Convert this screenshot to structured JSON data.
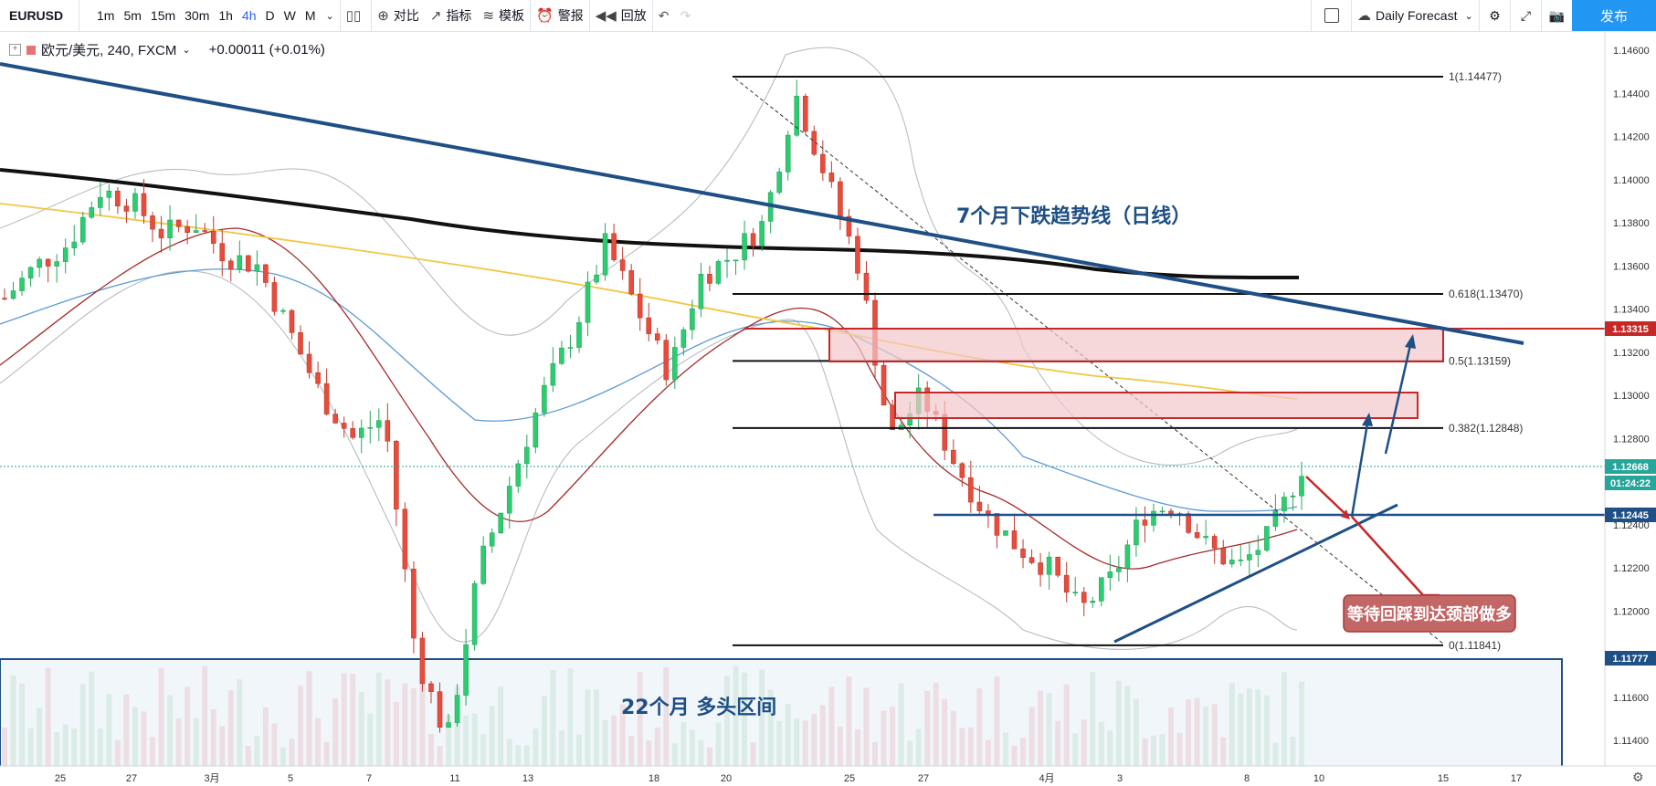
{
  "toolbar": {
    "symbol": "EURUSD",
    "intervals": [
      "1m",
      "5m",
      "15m",
      "30m",
      "1h",
      "4h",
      "D",
      "W",
      "M"
    ],
    "active_interval": "4h",
    "compare": "对比",
    "indicators": "指标",
    "templates": "模板",
    "alert": "警报",
    "replay": "回放",
    "layout_name": "Daily Forecast",
    "publish": "发布"
  },
  "legend": {
    "title": "欧元/美元, 240, FXCM",
    "change": "+0.00011 (+0.01%)"
  },
  "price_axis": {
    "ticks": [
      "1.14600",
      "1.14400",
      "1.14200",
      "1.14000",
      "1.13800",
      "1.13600",
      "1.13400",
      "1.13200",
      "1.13000",
      "1.12800",
      "1.12600",
      "1.12400",
      "1.12200",
      "1.12000",
      "1.11800",
      "1.11600",
      "1.11400"
    ],
    "labels": [
      {
        "text": "1.13315",
        "color": "#c62828"
      },
      {
        "text": "1.12668",
        "color": "#26a69a"
      },
      {
        "text": "01:24:22",
        "color": "#26a69a"
      },
      {
        "text": "1.12445",
        "color": "#1e4f85"
      },
      {
        "text": "1.11777",
        "color": "#1e4f85"
      }
    ]
  },
  "time_axis": [
    "25",
    "27",
    "3月",
    "5",
    "7",
    "11",
    "13",
    "18",
    "20",
    "25",
    "27",
    "4月",
    "3",
    "8",
    "10",
    "15",
    "17"
  ],
  "fib_levels": [
    {
      "label": "1(1.14477)",
      "price": 1.14477
    },
    {
      "label": "0.618(1.13470)",
      "price": 1.1347
    },
    {
      "label": "0.5(1.13159)",
      "price": 1.13159
    },
    {
      "label": "0.382(1.12848)",
      "price": 1.12848
    },
    {
      "label": "0(1.11841)",
      "price": 1.11841
    }
  ],
  "annotations": {
    "trendline_label": "7个月下跌趋势线（日线）",
    "wait_label": "等待回踩到达颈部做多",
    "zone_label": "22个月 多头区间"
  },
  "chart_data": {
    "type": "candlestick",
    "series": [
      {
        "name": "EURUSD 4h",
        "note": "approximate close path",
        "values": [
          1.1345,
          1.136,
          1.137,
          1.1395,
          1.139,
          1.1375,
          1.138,
          1.1365,
          1.136,
          1.133,
          1.13,
          1.128,
          1.129,
          1.118,
          1.114,
          1.122,
          1.126,
          1.13,
          1.133,
          1.137,
          1.134,
          1.131,
          1.1355,
          1.1365,
          1.138,
          1.144,
          1.14,
          1.136,
          1.128,
          1.13,
          1.127,
          1.1245,
          1.123,
          1.122,
          1.12,
          1.1215,
          1.1245,
          1.125,
          1.123,
          1.122,
          1.1235,
          1.1267
        ]
      }
    ]
  }
}
